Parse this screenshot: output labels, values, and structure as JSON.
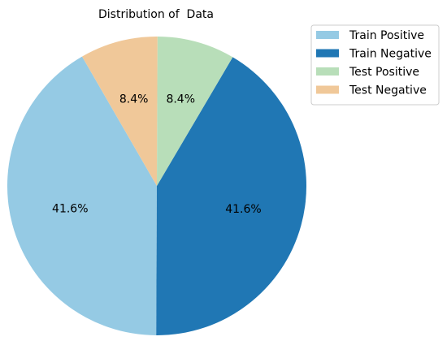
{
  "chart_data": {
    "type": "pie",
    "title": "Distribution of  Data",
    "categories": [
      "Train Positive",
      "Train Negative",
      "Test Positive",
      "Test Negative"
    ],
    "values": [
      41.6,
      41.6,
      8.4,
      8.4
    ],
    "value_labels": [
      "41.6%",
      "41.6%",
      "8.4%",
      "8.4%"
    ],
    "colors": [
      "#95cae4",
      "#2077b4",
      "#b8deb9",
      "#f0c899"
    ],
    "start_angle_deg": 120,
    "direction": "counterclockwise",
    "legend_position": "top-right"
  }
}
